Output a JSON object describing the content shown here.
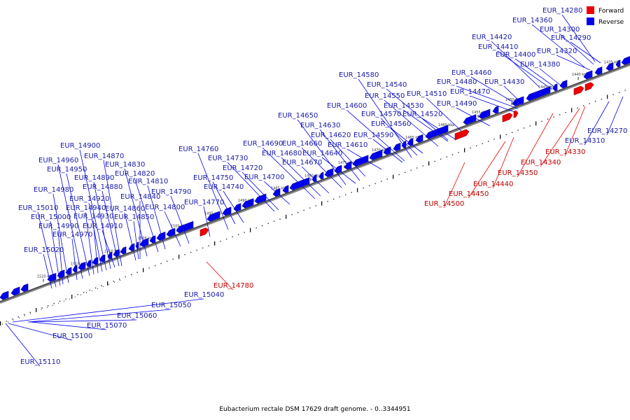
{
  "title": "Eubacterium rectale DSM 17629 draft genome. - 0..3344951",
  "legend": [
    {
      "label": "Forward",
      "color": "#ee0000"
    },
    {
      "label": "Reverse",
      "color": "#0000ee"
    }
  ],
  "colors": {
    "forward": "#ee0000",
    "reverse": "#0000ee",
    "forward_text": "#c00000",
    "reverse_text": "#1a1aa8"
  },
  "scale_ticks": [
    "1435 kbp",
    "1440 kbp",
    "1445 kbp",
    "1450 kbp",
    "1455 kbp",
    "1460 kbp",
    "1465 kbp",
    "1470 kbp",
    "1475 kbp",
    "1480 kbp",
    "1485 kbp",
    "1490 kbp",
    "1495 kbp",
    "1500 kbp",
    "1505 kbp",
    "1510 kbp",
    "1515 kbp",
    "1520 kbp"
  ],
  "reverse_genes": [
    "EUR_14280",
    "EUR_14360",
    "EUR_14300",
    "EUR_14290",
    "EUR_14320",
    "EUR_14380",
    "EUR_14400",
    "EUR_14410",
    "EUR_14420",
    "EUR_14430",
    "EUR_14460",
    "EUR_14480",
    "EUR_14470",
    "EUR_14490",
    "EUR_14510",
    "EUR_14520",
    "EUR_14530",
    "EUR_14540",
    "EUR_14550",
    "EUR_14560",
    "EUR_14570",
    "EUR_14580",
    "EUR_14590",
    "EUR_14600",
    "EUR_14610",
    "EUR_14620",
    "EUR_14630",
    "EUR_14640",
    "EUR_14650",
    "EUR_14660",
    "EUR_14670",
    "EUR_14680",
    "EUR_14690",
    "EUR_14700",
    "EUR_14720",
    "EUR_14730",
    "EUR_14740",
    "EUR_14750",
    "EUR_14760",
    "EUR_14770",
    "EUR_14790",
    "EUR_14800",
    "EUR_14810",
    "EUR_14820",
    "EUR_14830",
    "EUR_14840",
    "EUR_14850",
    "EUR_14860",
    "EUR_14870",
    "EUR_14880",
    "EUR_14890",
    "EUR_14900",
    "EUR_14910",
    "EUR_14920",
    "EUR_14930",
    "EUR_14940",
    "EUR_14950",
    "EUR_14960",
    "EUR_14970",
    "EUR_14980",
    "EUR_14990",
    "EUR_15000",
    "EUR_15010",
    "EUR_15020",
    "EUR_14270",
    "EUR_14310",
    "EUR_15040",
    "EUR_15050",
    "EUR_15060",
    "EUR_15070",
    "EUR_15100",
    "EUR_15110"
  ],
  "forward_genes": [
    "EUR_14330",
    "EUR_14340",
    "EUR_14350",
    "EUR_14440",
    "EUR_14450",
    "EUR_14500",
    "EUR_14780"
  ]
}
